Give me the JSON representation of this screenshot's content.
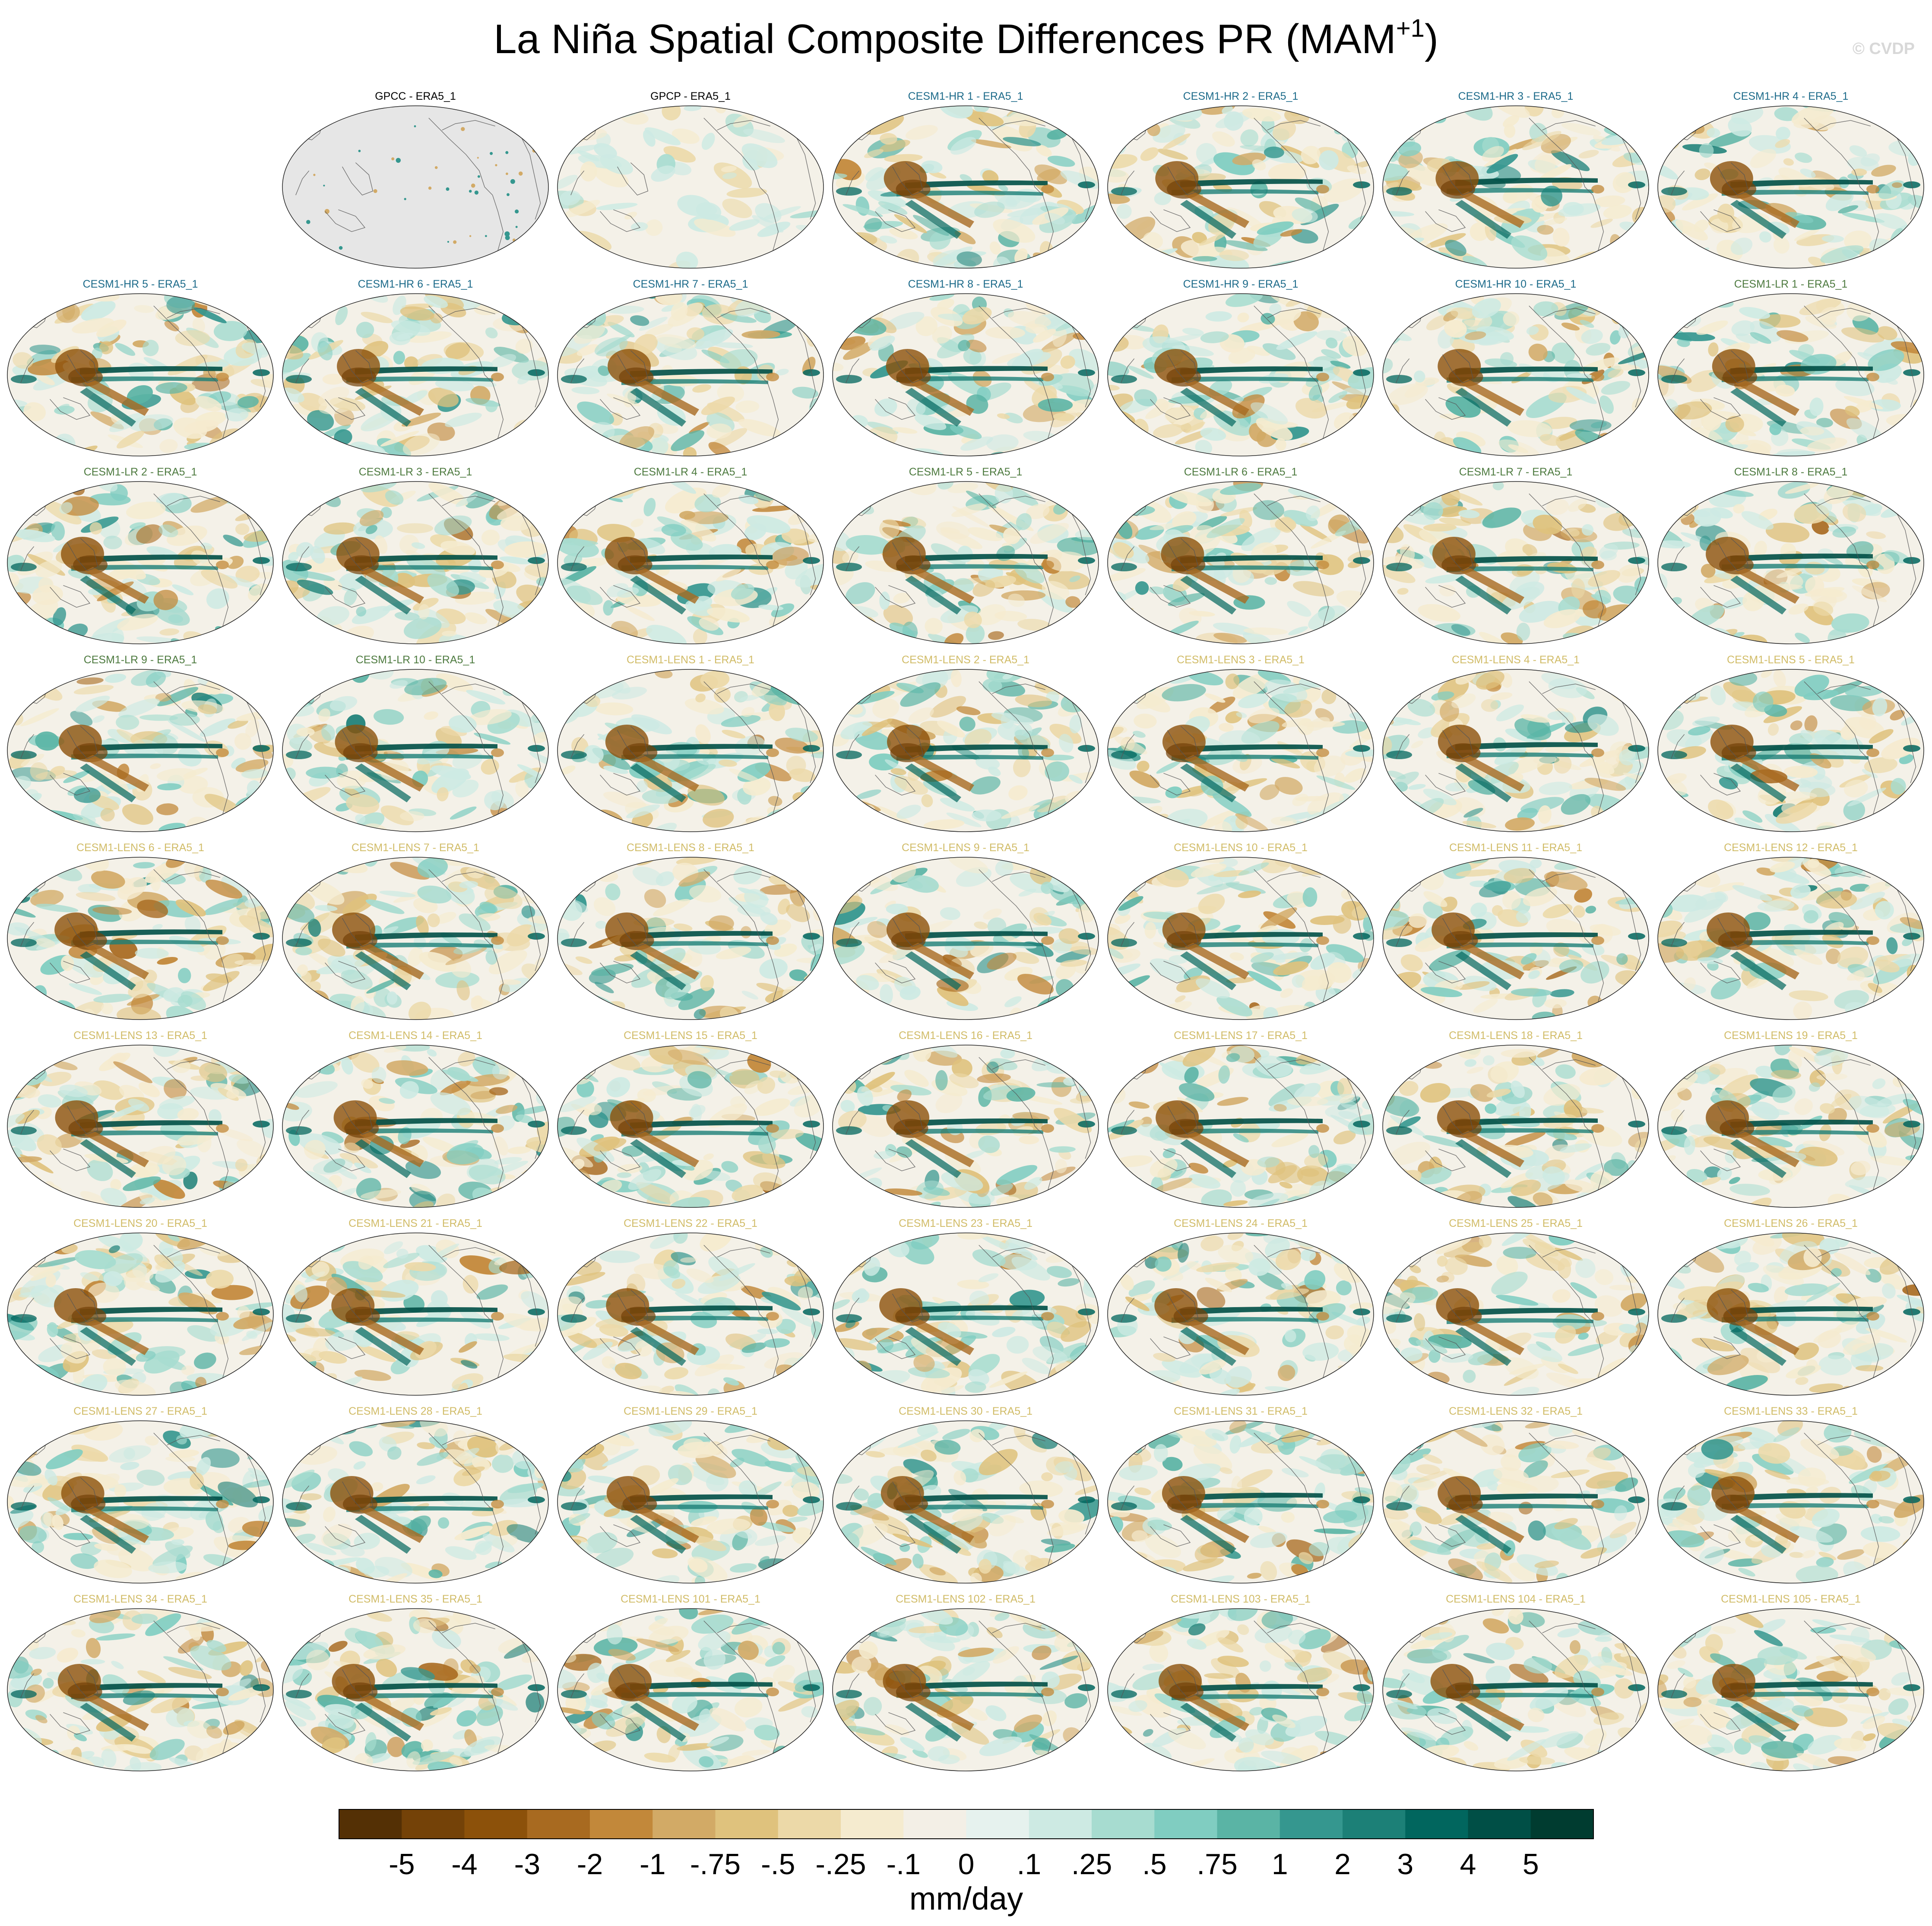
{
  "title": "La Niña Spatial Composite Differences PR (MAM",
  "title_superscript": "+1",
  "title_suffix": ")",
  "watermark": "© CVDP",
  "chart_data": {
    "type": "heatmap",
    "layout": "panel grid of global Robinson-projection maps, 7 columns × 9 rows",
    "title": "La Niña Spatial Composite Differences PR (MAM+1)",
    "units": "mm/day",
    "colorbar_levels": [
      "-5",
      "-4",
      "-3",
      "-2",
      "-1",
      "-.75",
      "-.5",
      "-.25",
      "-.1",
      "0",
      ".1",
      ".25",
      ".5",
      ".75",
      "1",
      "2",
      "3",
      "4",
      "5"
    ],
    "colorbar_colors": [
      "#543005",
      "#744208",
      "#8c510a",
      "#a86a20",
      "#c2883a",
      "#d2aa66",
      "#dfc27d",
      "#ecd9a8",
      "#f5ebcf",
      "#f3efe6",
      "#e6f2ee",
      "#cdeae3",
      "#a7dcd0",
      "#80cdc1",
      "#5ab4a5",
      "#35978f",
      "#1c8077",
      "#01665e",
      "#004f46",
      "#003c30"
    ],
    "group_colors": {
      "obs": "#000000",
      "CESM1-HR": "#1d6b8a",
      "CESM1-LR": "#4d7a3f",
      "CESM1-LENS": "#d1bc68"
    },
    "missing_panels": [
      "row 1, column 1"
    ],
    "panels": [
      {
        "label": "GPCC - ERA5_1",
        "group": "obs",
        "variant": "gray"
      },
      {
        "label": "GPCP - ERA5_1",
        "group": "obs",
        "variant": "weak"
      },
      {
        "label": "CESM1-HR 1 - ERA5_1",
        "group": "CESM1-HR"
      },
      {
        "label": "CESM1-HR 2 - ERA5_1",
        "group": "CESM1-HR"
      },
      {
        "label": "CESM1-HR 3 - ERA5_1",
        "group": "CESM1-HR"
      },
      {
        "label": "CESM1-HR 4 - ERA5_1",
        "group": "CESM1-HR"
      },
      {
        "label": "CESM1-HR 5 - ERA5_1",
        "group": "CESM1-HR"
      },
      {
        "label": "CESM1-HR 6 - ERA5_1",
        "group": "CESM1-HR"
      },
      {
        "label": "CESM1-HR 7 - ERA5_1",
        "group": "CESM1-HR"
      },
      {
        "label": "CESM1-HR 8 - ERA5_1",
        "group": "CESM1-HR"
      },
      {
        "label": "CESM1-HR 9 - ERA5_1",
        "group": "CESM1-HR"
      },
      {
        "label": "CESM1-HR 10 - ERA5_1",
        "group": "CESM1-HR"
      },
      {
        "label": "CESM1-LR 1 - ERA5_1",
        "group": "CESM1-LR"
      },
      {
        "label": "CESM1-LR 2 - ERA5_1",
        "group": "CESM1-LR"
      },
      {
        "label": "CESM1-LR 3 - ERA5_1",
        "group": "CESM1-LR"
      },
      {
        "label": "CESM1-LR 4 - ERA5_1",
        "group": "CESM1-LR"
      },
      {
        "label": "CESM1-LR 5 - ERA5_1",
        "group": "CESM1-LR"
      },
      {
        "label": "CESM1-LR 6 - ERA5_1",
        "group": "CESM1-LR"
      },
      {
        "label": "CESM1-LR 7 - ERA5_1",
        "group": "CESM1-LR"
      },
      {
        "label": "CESM1-LR 8 - ERA5_1",
        "group": "CESM1-LR"
      },
      {
        "label": "CESM1-LR 9 - ERA5_1",
        "group": "CESM1-LR"
      },
      {
        "label": "CESM1-LR 10 - ERA5_1",
        "group": "CESM1-LR"
      },
      {
        "label": "CESM1-LENS 1 - ERA5_1",
        "group": "CESM1-LENS"
      },
      {
        "label": "CESM1-LENS 2 - ERA5_1",
        "group": "CESM1-LENS"
      },
      {
        "label": "CESM1-LENS 3 - ERA5_1",
        "group": "CESM1-LENS"
      },
      {
        "label": "CESM1-LENS 4 - ERA5_1",
        "group": "CESM1-LENS"
      },
      {
        "label": "CESM1-LENS 5 - ERA5_1",
        "group": "CESM1-LENS"
      },
      {
        "label": "CESM1-LENS 6 - ERA5_1",
        "group": "CESM1-LENS"
      },
      {
        "label": "CESM1-LENS 7 - ERA5_1",
        "group": "CESM1-LENS"
      },
      {
        "label": "CESM1-LENS 8 - ERA5_1",
        "group": "CESM1-LENS"
      },
      {
        "label": "CESM1-LENS 9 - ERA5_1",
        "group": "CESM1-LENS"
      },
      {
        "label": "CESM1-LENS 10 - ERA5_1",
        "group": "CESM1-LENS"
      },
      {
        "label": "CESM1-LENS 11 - ERA5_1",
        "group": "CESM1-LENS"
      },
      {
        "label": "CESM1-LENS 12 - ERA5_1",
        "group": "CESM1-LENS"
      },
      {
        "label": "CESM1-LENS 13 - ERA5_1",
        "group": "CESM1-LENS"
      },
      {
        "label": "CESM1-LENS 14 - ERA5_1",
        "group": "CESM1-LENS"
      },
      {
        "label": "CESM1-LENS 15 - ERA5_1",
        "group": "CESM1-LENS"
      },
      {
        "label": "CESM1-LENS 16 - ERA5_1",
        "group": "CESM1-LENS"
      },
      {
        "label": "CESM1-LENS 17 - ERA5_1",
        "group": "CESM1-LENS"
      },
      {
        "label": "CESM1-LENS 18 - ERA5_1",
        "group": "CESM1-LENS"
      },
      {
        "label": "CESM1-LENS 19 - ERA5_1",
        "group": "CESM1-LENS"
      },
      {
        "label": "CESM1-LENS 20 - ERA5_1",
        "group": "CESM1-LENS"
      },
      {
        "label": "CESM1-LENS 21 - ERA5_1",
        "group": "CESM1-LENS"
      },
      {
        "label": "CESM1-LENS 22 - ERA5_1",
        "group": "CESM1-LENS"
      },
      {
        "label": "CESM1-LENS 23 - ERA5_1",
        "group": "CESM1-LENS"
      },
      {
        "label": "CESM1-LENS 24 - ERA5_1",
        "group": "CESM1-LENS"
      },
      {
        "label": "CESM1-LENS 25 - ERA5_1",
        "group": "CESM1-LENS"
      },
      {
        "label": "CESM1-LENS 26 - ERA5_1",
        "group": "CESM1-LENS"
      },
      {
        "label": "CESM1-LENS 27 - ERA5_1",
        "group": "CESM1-LENS"
      },
      {
        "label": "CESM1-LENS 28 - ERA5_1",
        "group": "CESM1-LENS"
      },
      {
        "label": "CESM1-LENS 29 - ERA5_1",
        "group": "CESM1-LENS"
      },
      {
        "label": "CESM1-LENS 30 - ERA5_1",
        "group": "CESM1-LENS"
      },
      {
        "label": "CESM1-LENS 31 - ERA5_1",
        "group": "CESM1-LENS"
      },
      {
        "label": "CESM1-LENS 32 - ERA5_1",
        "group": "CESM1-LENS"
      },
      {
        "label": "CESM1-LENS 33 - ERA5_1",
        "group": "CESM1-LENS"
      },
      {
        "label": "CESM1-LENS 34 - ERA5_1",
        "group": "CESM1-LENS"
      },
      {
        "label": "CESM1-LENS 35 - ERA5_1",
        "group": "CESM1-LENS"
      },
      {
        "label": "CESM1-LENS 101 - ERA5_1",
        "group": "CESM1-LENS"
      },
      {
        "label": "CESM1-LENS 102 - ERA5_1",
        "group": "CESM1-LENS"
      },
      {
        "label": "CESM1-LENS 103 - ERA5_1",
        "group": "CESM1-LENS"
      },
      {
        "label": "CESM1-LENS 104 - ERA5_1",
        "group": "CESM1-LENS"
      },
      {
        "label": "CESM1-LENS 105 - ERA5_1",
        "group": "CESM1-LENS"
      }
    ]
  }
}
